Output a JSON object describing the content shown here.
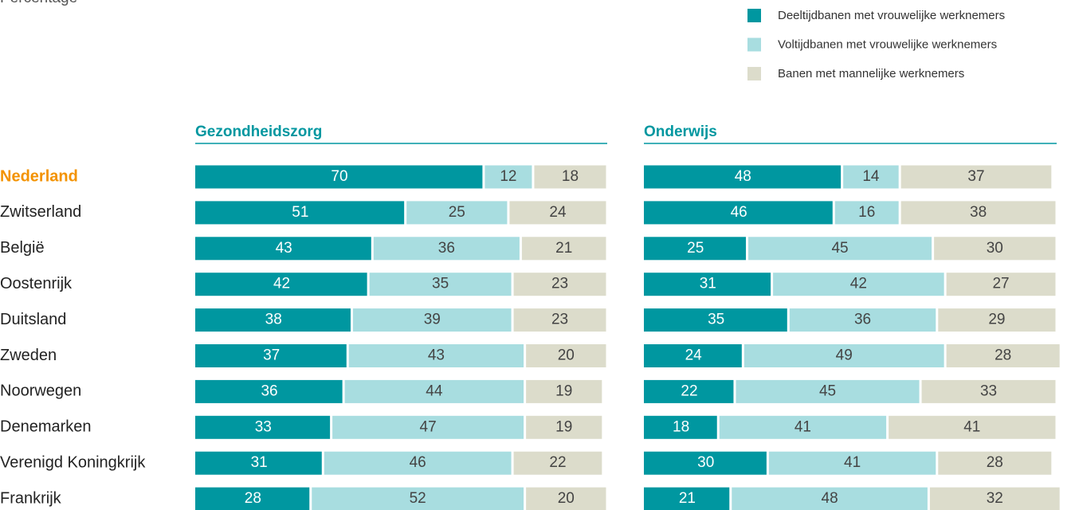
{
  "chart_data": [
    {
      "type": "bar",
      "orientation": "horizontal",
      "stacked": true,
      "subtitle": "Percentage",
      "title": "Gezondheidszorg",
      "categories": [
        "Nederland",
        "Zwitserland",
        "België",
        "Oostenrijk",
        "Duitsland",
        "Zweden",
        "Noorwegen",
        "Denemarken",
        "Verenigd Koningkrijk",
        "Frankrijk"
      ],
      "category_colors": [
        "#f39200",
        "#222222",
        "#222222",
        "#222222",
        "#222222",
        "#222222",
        "#222222",
        "#222222",
        "#222222",
        "#222222"
      ],
      "xlim": [
        0,
        100
      ],
      "series": [
        {
          "name": "Deeltijdbanen met vrouwelijke werknemers",
          "color": "#0097a0",
          "values": [
            70,
            51,
            43,
            42,
            38,
            37,
            36,
            33,
            31,
            28
          ]
        },
        {
          "name": "Voltijdbanen met vrouwelijke werknemers",
          "color": "#a8dde0",
          "values": [
            12,
            25,
            36,
            35,
            39,
            43,
            44,
            47,
            46,
            52
          ]
        },
        {
          "name": "Banen met mannelijke werknemers",
          "color": "#dcdccb",
          "values": [
            18,
            24,
            21,
            23,
            23,
            20,
            19,
            19,
            22,
            20
          ]
        }
      ]
    },
    {
      "type": "bar",
      "orientation": "horizontal",
      "stacked": true,
      "title": "Onderwijs",
      "xlim": [
        0,
        100
      ],
      "series": [
        {
          "color": "#0097a0",
          "values": [
            48,
            46,
            25,
            31,
            35,
            24,
            22,
            18,
            30,
            21
          ]
        },
        {
          "color": "#a8dde0",
          "values": [
            14,
            16,
            45,
            42,
            36,
            49,
            45,
            41,
            41,
            48
          ]
        },
        {
          "color": "#dcdccb",
          "values": [
            37,
            38,
            30,
            27,
            29,
            28,
            33,
            41,
            28,
            32
          ]
        }
      ]
    }
  ]
}
